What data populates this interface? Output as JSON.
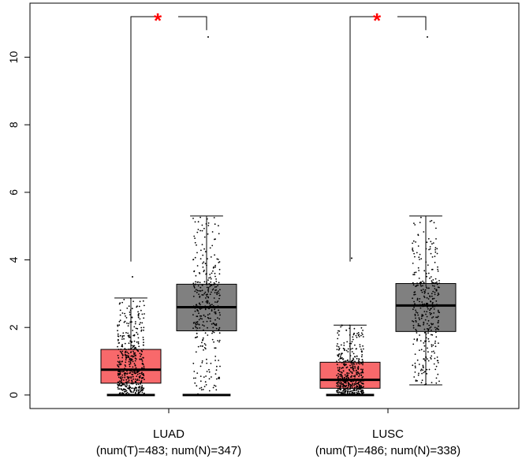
{
  "chart_data": {
    "type": "boxplot",
    "title": "",
    "xlabel": "",
    "ylabel": "",
    "ylim": [
      -0.4,
      11.6
    ],
    "yticks": [
      0,
      2,
      4,
      6,
      8,
      10
    ],
    "grid": false,
    "groups": [
      {
        "name": "LUAD",
        "subtitle": "(num(T)=483; num(N)=347)",
        "significance": "*",
        "tumor": {
          "n": 483,
          "min": 0.0,
          "q1": 0.35,
          "median": 0.75,
          "q3": 1.35,
          "whisker_high": 2.87,
          "max": 3.5,
          "color": "#f8696b"
        },
        "normal": {
          "n": 347,
          "min": 0.0,
          "q1": 1.9,
          "median": 2.6,
          "q3": 3.28,
          "whisker_high": 5.3,
          "max": 10.6,
          "color": "#808080"
        }
      },
      {
        "name": "LUSC",
        "subtitle": "(num(T)=486; num(N)=338)",
        "significance": "*",
        "tumor": {
          "n": 486,
          "min": 0.0,
          "q1": 0.2,
          "median": 0.45,
          "q3": 0.97,
          "whisker_high": 2.07,
          "max": 4.05,
          "color": "#f8696b"
        },
        "normal": {
          "n": 338,
          "min": 0.3,
          "q1": 1.88,
          "median": 2.65,
          "q3": 3.3,
          "whisker_high": 5.3,
          "max": 10.6,
          "color": "#808080"
        }
      }
    ]
  }
}
